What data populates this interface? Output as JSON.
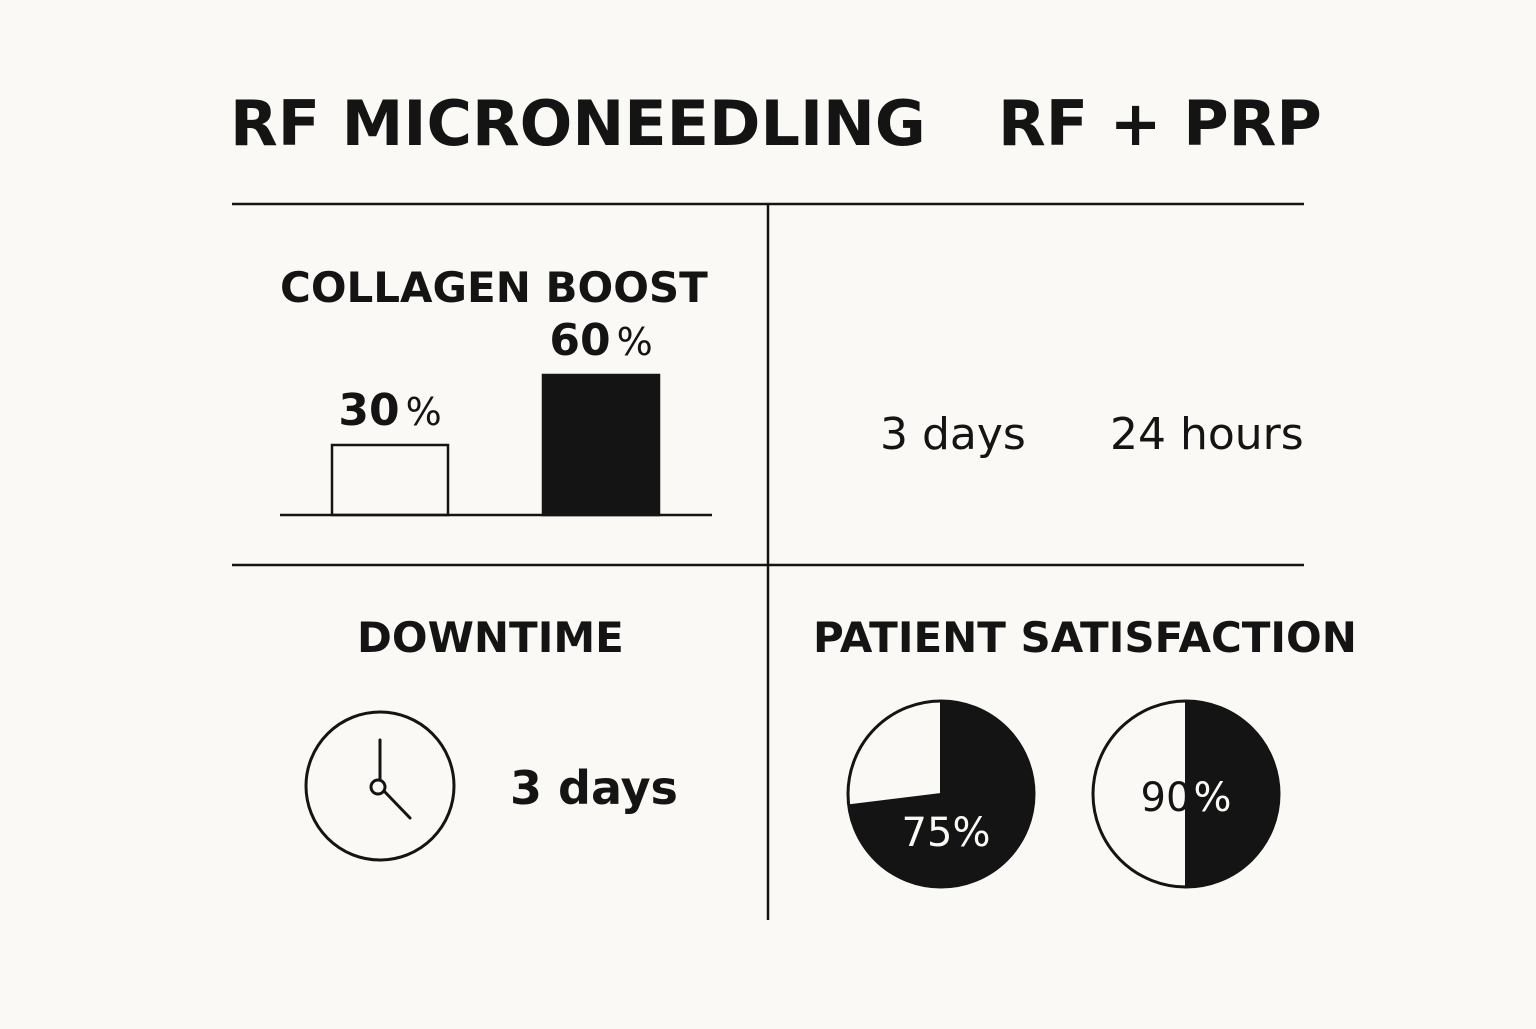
{
  "header": {
    "left_title": "RF MICRONEEDLING",
    "right_title": "RF + PRP"
  },
  "colors": {
    "background": "#faf9f5",
    "ink": "#141414",
    "paper": "#faf9f5"
  },
  "sections": {
    "collagen": {
      "title": "COLLAGEN BOOST",
      "bars": [
        {
          "value": "30",
          "unit": "%",
          "style": "outline"
        },
        {
          "value": "60",
          "unit": "%",
          "style": "filled"
        }
      ]
    },
    "recovery": {
      "left_value": "3 days",
      "right_value": "24 hours"
    },
    "downtime": {
      "title": "DOWNTIME",
      "icon": "clock-icon",
      "value": "3 days"
    },
    "satisfaction": {
      "title": "PATIENT SATISFACTION",
      "pies": [
        {
          "label": "75%",
          "value": 75
        },
        {
          "label": "90",
          "unit": "%",
          "value": 90
        }
      ]
    }
  },
  "chart_data": [
    {
      "type": "bar",
      "title": "COLLAGEN BOOST",
      "categories": [
        "RF MICRONEEDLING",
        "RF + PRP"
      ],
      "values": [
        30,
        60
      ],
      "unit": "%",
      "xlabel": "",
      "ylabel": "",
      "ylim": [
        0,
        100
      ],
      "grid": false
    },
    {
      "type": "pie",
      "title": "PATIENT SATISFACTION",
      "categories": [
        "RF MICRONEEDLING",
        "RF + PRP"
      ],
      "values": [
        75,
        90
      ],
      "unit": "%"
    }
  ]
}
